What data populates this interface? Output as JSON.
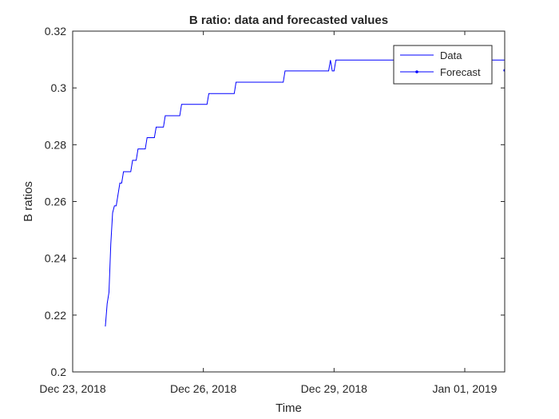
{
  "chart_data": {
    "type": "line",
    "title": "B ratio: data and forecasted values",
    "xlabel": "Time",
    "ylabel": "B ratios",
    "xlim": [
      "2018-12-23T00:00",
      "2019-01-01T22:00"
    ],
    "ylim": [
      0.2,
      0.32
    ],
    "x_ticks": [
      {
        "date": "2018-12-23",
        "label": "Dec 23, 2018"
      },
      {
        "date": "2018-12-26",
        "label": "Dec 26, 2018"
      },
      {
        "date": "2018-12-29",
        "label": "Dec 29, 2018"
      },
      {
        "date": "2019-01-01",
        "label": "Jan 01, 2019"
      }
    ],
    "y_ticks": [
      {
        "value": 0.2,
        "label": "0.2"
      },
      {
        "value": 0.22,
        "label": "0.22"
      },
      {
        "value": 0.24,
        "label": "0.24"
      },
      {
        "value": 0.26,
        "label": "0.26"
      },
      {
        "value": 0.28,
        "label": "0.28"
      },
      {
        "value": 0.3,
        "label": "0.3"
      },
      {
        "value": 0.32,
        "label": "0.32"
      }
    ],
    "grid": false,
    "legend_position": "top-right",
    "series": [
      {
        "name": "Data",
        "color": "#0000ff",
        "marker": "none",
        "points": [
          [
            "2018-12-23T18:00",
            0.216
          ],
          [
            "2018-12-23T19:00",
            0.224
          ],
          [
            "2018-12-23T20:00",
            0.228
          ],
          [
            "2018-12-23T21:00",
            0.245
          ],
          [
            "2018-12-23T22:00",
            0.256
          ],
          [
            "2018-12-23T23:00",
            0.2585
          ],
          [
            "2018-12-24T00:00",
            0.2585
          ],
          [
            "2018-12-24T02:00",
            0.2665
          ],
          [
            "2018-12-24T03:00",
            0.2665
          ],
          [
            "2018-12-24T04:00",
            0.2705
          ],
          [
            "2018-12-24T08:00",
            0.2705
          ],
          [
            "2018-12-24T09:00",
            0.2745
          ],
          [
            "2018-12-24T11:00",
            0.2745
          ],
          [
            "2018-12-24T12:00",
            0.2785
          ],
          [
            "2018-12-24T16:00",
            0.2785
          ],
          [
            "2018-12-24T17:00",
            0.2825
          ],
          [
            "2018-12-24T21:00",
            0.2825
          ],
          [
            "2018-12-24T22:00",
            0.2862
          ],
          [
            "2018-12-25T02:00",
            0.2862
          ],
          [
            "2018-12-25T03:00",
            0.2902
          ],
          [
            "2018-12-25T11:00",
            0.2902
          ],
          [
            "2018-12-25T12:00",
            0.2942
          ],
          [
            "2018-12-26T02:00",
            0.2942
          ],
          [
            "2018-12-26T03:00",
            0.298
          ],
          [
            "2018-12-26T17:00",
            0.298
          ],
          [
            "2018-12-26T18:00",
            0.302
          ],
          [
            "2018-12-27T20:00",
            0.302
          ],
          [
            "2018-12-27T21:00",
            0.306
          ],
          [
            "2018-12-28T21:00",
            0.306
          ],
          [
            "2018-12-28T22:00",
            0.3098
          ],
          [
            "2018-12-28T23:00",
            0.306
          ],
          [
            "2018-12-29T00:00",
            0.306
          ],
          [
            "2018-12-29T01:00",
            0.3098
          ],
          [
            "2019-01-01T22:00",
            0.3098
          ]
        ]
      },
      {
        "name": "Forecast",
        "color": "#0000ff",
        "marker": "point",
        "points": [
          [
            "2019-01-01T22:00",
            0.3062
          ]
        ]
      }
    ]
  }
}
